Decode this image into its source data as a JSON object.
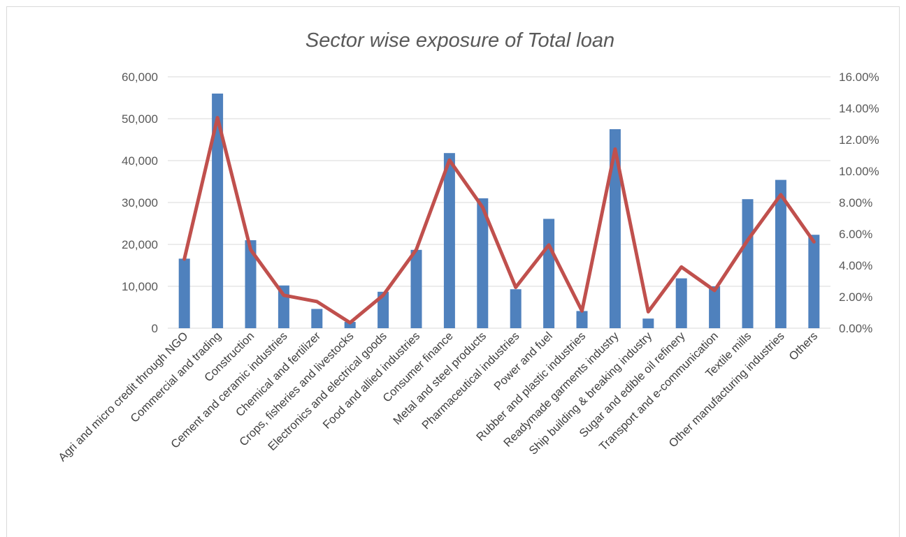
{
  "chart_data": {
    "type": "bar",
    "title": "Sector wise exposure of Total loan",
    "xlabel": "",
    "ylabel": "",
    "y2label": "",
    "ylim": [
      0,
      60000
    ],
    "y2lim": [
      0,
      0.16
    ],
    "grid": true,
    "legend": "none",
    "y_ticks": [
      "0",
      "10,000",
      "20,000",
      "30,000",
      "40,000",
      "50,000",
      "60,000"
    ],
    "y2_ticks": [
      "0.00%",
      "2.00%",
      "4.00%",
      "6.00%",
      "8.00%",
      "10.00%",
      "12.00%",
      "14.00%",
      "16.00%"
    ],
    "categories": [
      "Agri and micro credit through NGO",
      "Commercial and trading",
      "Construction",
      "Cement and ceramic industries",
      "Chemical and fertilizer",
      "Crops, fisheries and livestocks",
      "Electronics and electrical goods",
      "Food and allied industries",
      "Consumer finance",
      "Metal and steel products",
      "Pharmaceutical industries",
      "Power and fuel",
      "Rubber and plastic industries",
      "Readymade garments industry",
      "Ship building & breaking industry",
      "Sugar and edible oil refinery",
      "Transport and e-communication",
      "Textile mills",
      "Other manufacturing  industries",
      "Others"
    ],
    "series": [
      {
        "type": "bar",
        "axis": "left",
        "values": [
          16600,
          56000,
          21000,
          10200,
          4600,
          1500,
          8700,
          18700,
          41800,
          31000,
          9300,
          26100,
          4100,
          47500,
          2300,
          11900,
          10000,
          30800,
          35400,
          22300
        ]
      },
      {
        "type": "line",
        "axis": "right",
        "values": [
          0.044,
          0.134,
          0.05,
          0.021,
          0.017,
          0.0035,
          0.021,
          0.05,
          0.107,
          0.077,
          0.026,
          0.053,
          0.011,
          0.114,
          0.0105,
          0.039,
          0.024,
          0.056,
          0.085,
          0.055
        ]
      }
    ],
    "colors": {
      "bar": "#4f81bd",
      "line": "#c0504d",
      "grid": "#d9d9d9"
    }
  }
}
